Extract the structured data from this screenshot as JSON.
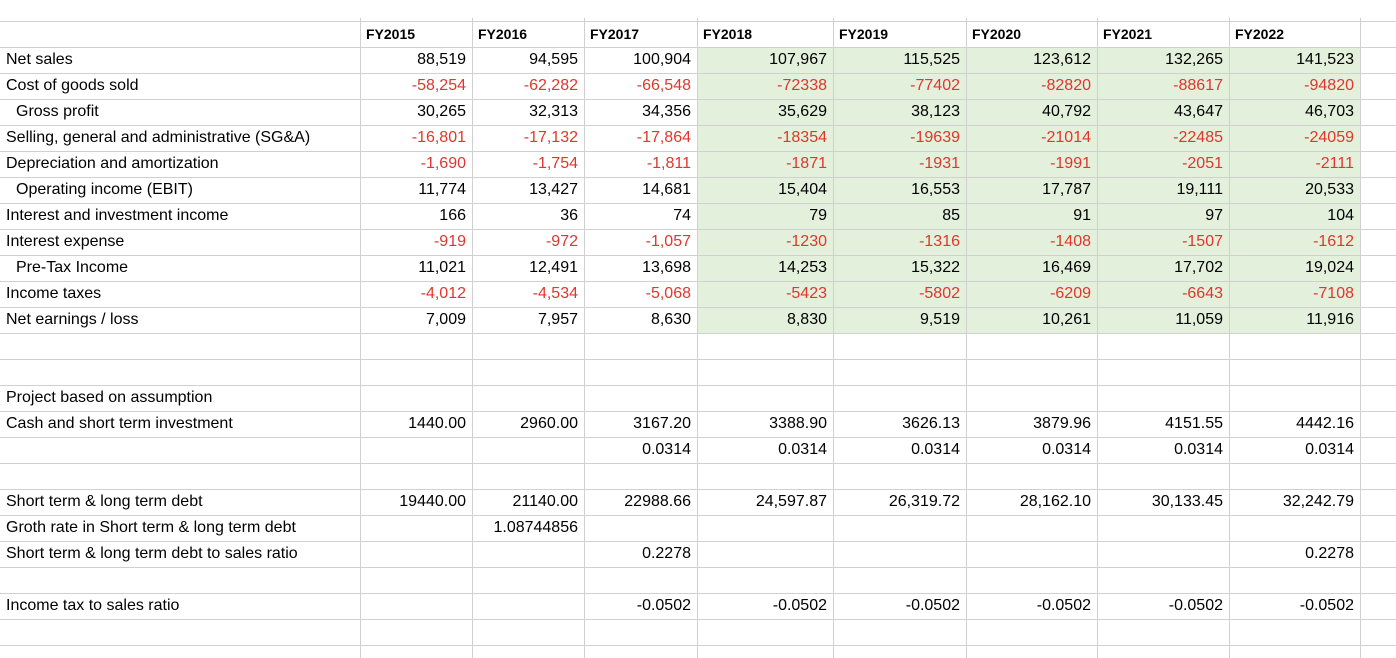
{
  "headers": [
    "FY2015",
    "FY2016",
    "FY2017",
    "FY2018",
    "FY2019",
    "FY2020",
    "FY2021",
    "FY2022"
  ],
  "income_statement": [
    {
      "label": "Net sales",
      "indent": false,
      "values": [
        "88,519",
        "94,595",
        "100,904",
        "107,967",
        "115,525",
        "123,612",
        "132,265",
        "141,523"
      ]
    },
    {
      "label": "Cost of goods sold",
      "indent": false,
      "negative": true,
      "values": [
        "-58,254",
        "-62,282",
        "-66,548",
        "-72338",
        "-77402",
        "-82820",
        "-88617",
        "-94820"
      ]
    },
    {
      "label": "Gross profit",
      "indent": true,
      "values": [
        "30,265",
        "32,313",
        "34,356",
        "35,629",
        "38,123",
        "40,792",
        "43,647",
        "46,703"
      ]
    },
    {
      "label": "Selling, general and administrative (SG&A)",
      "indent": false,
      "negative": true,
      "values": [
        "-16,801",
        "-17,132",
        "-17,864",
        "-18354",
        "-19639",
        "-21014",
        "-22485",
        "-24059"
      ]
    },
    {
      "label": "Depreciation and amortization",
      "indent": false,
      "negative": true,
      "values": [
        "-1,690",
        "-1,754",
        "-1,811",
        "-1871",
        "-1931",
        "-1991",
        "-2051",
        "-2111"
      ]
    },
    {
      "label": "Operating income (EBIT)",
      "indent": true,
      "values": [
        "11,774",
        "13,427",
        "14,681",
        "15,404",
        "16,553",
        "17,787",
        "19,111",
        "20,533"
      ]
    },
    {
      "label": "Interest and investment income",
      "indent": false,
      "values": [
        "166",
        "36",
        "74",
        "79",
        "85",
        "91",
        "97",
        "104"
      ]
    },
    {
      "label": "Interest expense",
      "indent": false,
      "negative": true,
      "values": [
        "-919",
        "-972",
        "-1,057",
        "-1230",
        "-1316",
        "-1408",
        "-1507",
        "-1612"
      ]
    },
    {
      "label": "Pre-Tax Income",
      "indent": true,
      "values": [
        "11,021",
        "12,491",
        "13,698",
        "14,253",
        "15,322",
        "16,469",
        "17,702",
        "19,024"
      ]
    },
    {
      "label": "Income taxes",
      "indent": false,
      "negative": true,
      "values": [
        "-4,012",
        "-4,534",
        "-5,068",
        "-5423",
        "-5802",
        "-6209",
        "-6643",
        "-7108"
      ]
    },
    {
      "label": "Net earnings / loss",
      "indent": false,
      "values": [
        "7,009",
        "7,957",
        "8,630",
        "8,830",
        "9,519",
        "10,261",
        "11,059",
        "11,916"
      ]
    }
  ],
  "assumptions": {
    "section_title": "Project based on assumption",
    "cash": {
      "label": "Cash and short term investment",
      "values": [
        "1440.00",
        "2960.00",
        "3167.20",
        "3388.90",
        "3626.13",
        "3879.96",
        "4151.55",
        "4442.16"
      ]
    },
    "cash_rate": {
      "label": "",
      "values": [
        "",
        "",
        "0.0314",
        "0.0314",
        "0.0314",
        "0.0314",
        "0.0314",
        "0.0314"
      ]
    },
    "debt": {
      "label": "Short term & long term debt",
      "values": [
        "19440.00",
        "21140.00",
        "22988.66",
        "24,597.87",
        "26,319.72",
        "28,162.10",
        "30,133.45",
        "32,242.79"
      ]
    },
    "debt_growth": {
      "label": "Groth rate in Short term & long term debt",
      "values": [
        "",
        "1.08744856",
        "",
        "",
        "",
        "",
        "",
        ""
      ]
    },
    "debt_ratio": {
      "label": "Short term & long term debt to sales ratio",
      "values": [
        "",
        "",
        "0.2278",
        "",
        "",
        "",
        "",
        "0.2278"
      ]
    },
    "tax_ratio": {
      "label": "Income tax to sales ratio",
      "values": [
        "",
        "",
        "-0.0502",
        "-0.0502",
        "-0.0502",
        "-0.0502",
        "-0.0502",
        "-0.0502"
      ]
    }
  },
  "colors": {
    "negative": "#e0362d",
    "highlight": "#e3f0dc",
    "grid": "#d0d0d0"
  }
}
